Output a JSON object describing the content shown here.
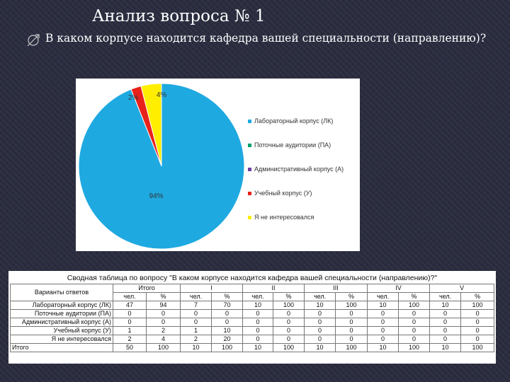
{
  "slide": {
    "title": "Анализ вопроса № 1",
    "question": "В каком корпусе находится кафедра вашей специальности (направлению)?"
  },
  "chart_data": {
    "type": "pie",
    "categories": [
      "Лабораторный корпус (ЛК)",
      "Поточные аудитории (ПА)",
      "Административный корпус (А)",
      "Учебный корпус (У)",
      "Я не интересовался"
    ],
    "values": [
      94,
      0,
      0,
      2,
      4
    ],
    "value_labels": [
      "94%",
      "",
      "",
      "2%",
      "4%"
    ],
    "colors": [
      "#1fa9e1",
      "#00a06b",
      "#6b3fa0",
      "#e8211b",
      "#ffee00"
    ],
    "legend_position": "right"
  },
  "table": {
    "title": "Сводная таблица по вопросу \"В каком корпусе находится кафедра вашей специальности (направлению)?\"",
    "variants_header": "Варианты ответов",
    "groups": [
      "Итого",
      "I",
      "II",
      "III",
      "IV",
      "V"
    ],
    "subheaders": [
      "чел.",
      "%"
    ],
    "rows": [
      {
        "label": "Лабораторный корпус (ЛК)",
        "cells": [
          "47",
          "94",
          "7",
          "70",
          "10",
          "100",
          "10",
          "100",
          "10",
          "100",
          "10",
          "100"
        ]
      },
      {
        "label": "Поточные аудитории (ПА)",
        "cells": [
          "0",
          "0",
          "0",
          "0",
          "0",
          "0",
          "0",
          "0",
          "0",
          "0",
          "0",
          "0"
        ]
      },
      {
        "label": "Административный корпус (А)",
        "cells": [
          "0",
          "0",
          "0",
          "0",
          "0",
          "0",
          "0",
          "0",
          "0",
          "0",
          "0",
          "0"
        ]
      },
      {
        "label": "Учебный корпус (У)",
        "cells": [
          "1",
          "2",
          "1",
          "10",
          "0",
          "0",
          "0",
          "0",
          "0",
          "0",
          "0",
          "0"
        ]
      },
      {
        "label": "Я не интересовался",
        "cells": [
          "2",
          "4",
          "2",
          "20",
          "0",
          "0",
          "0",
          "0",
          "0",
          "0",
          "0",
          "0"
        ]
      }
    ],
    "total": {
      "label": "Итого",
      "cells": [
        "50",
        "100",
        "10",
        "100",
        "10",
        "100",
        "10",
        "100",
        "10",
        "100",
        "10",
        "100"
      ]
    }
  }
}
